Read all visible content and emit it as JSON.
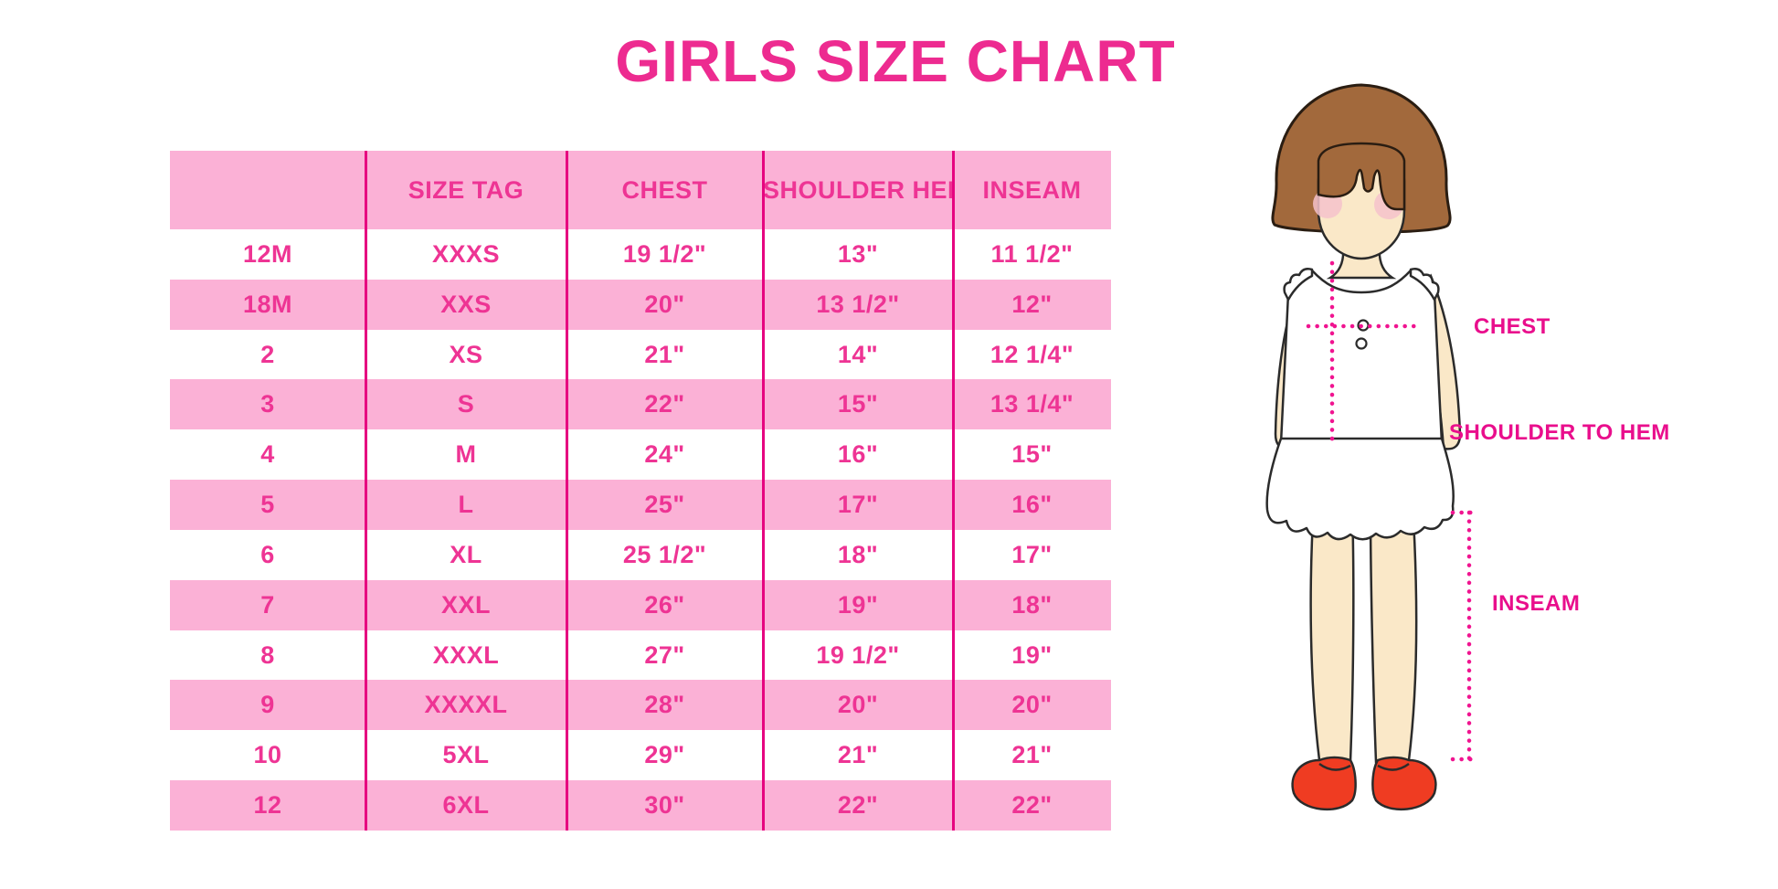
{
  "title": "GIRLS SIZE CHART",
  "chart_data": {
    "type": "table",
    "title": "GIRLS SIZE CHART",
    "columns": [
      "",
      "SIZE TAG",
      "CHEST",
      "SHOULDER HEM",
      "INSEAM"
    ],
    "rows": [
      [
        "12M",
        "XXXS",
        "19 1/2\"",
        "13\"",
        "11 1/2\""
      ],
      [
        "18M",
        "XXS",
        "20\"",
        "13 1/2\"",
        "12\""
      ],
      [
        "2",
        "XS",
        "21\"",
        "14\"",
        "12 1/4\""
      ],
      [
        "3",
        "S",
        "22\"",
        "15\"",
        "13 1/4\""
      ],
      [
        "4",
        "M",
        "24\"",
        "16\"",
        "15\""
      ],
      [
        "5",
        "L",
        "25\"",
        "17\"",
        "16\""
      ],
      [
        "6",
        "XL",
        "25 1/2\"",
        "18\"",
        "17\""
      ],
      [
        "7",
        "XXL",
        "26\"",
        "19\"",
        "18\""
      ],
      [
        "8",
        "XXXL",
        "27\"",
        "19 1/2\"",
        "19\""
      ],
      [
        "9",
        "XXXXL",
        "28\"",
        "20\"",
        "20\""
      ],
      [
        "10",
        "5XL",
        "29\"",
        "21\"",
        "21\""
      ],
      [
        "12",
        "6XL",
        "30\"",
        "22\"",
        "22\""
      ]
    ],
    "row_banding": "first data row white, then alternating pink/white",
    "grid": "vertical magenta column dividers only"
  },
  "figure_labels": {
    "chest": "CHEST",
    "shoulder_to_hem": "SHOULDER TO HEM",
    "inseam": "INSEAM"
  },
  "colors": {
    "title_pink": "#ED2B90",
    "band_pink": "#FBB1D6",
    "table_text_pink": "#EE3494",
    "divider_magenta": "#E60480",
    "label_magenta": "#E90E8C",
    "dotted_line_magenta": "#F01490",
    "hair_brown": "#A2693C",
    "skin": "#FAE8C8",
    "blush": "#F5C2CB",
    "shoe_red": "#EF3C22"
  }
}
